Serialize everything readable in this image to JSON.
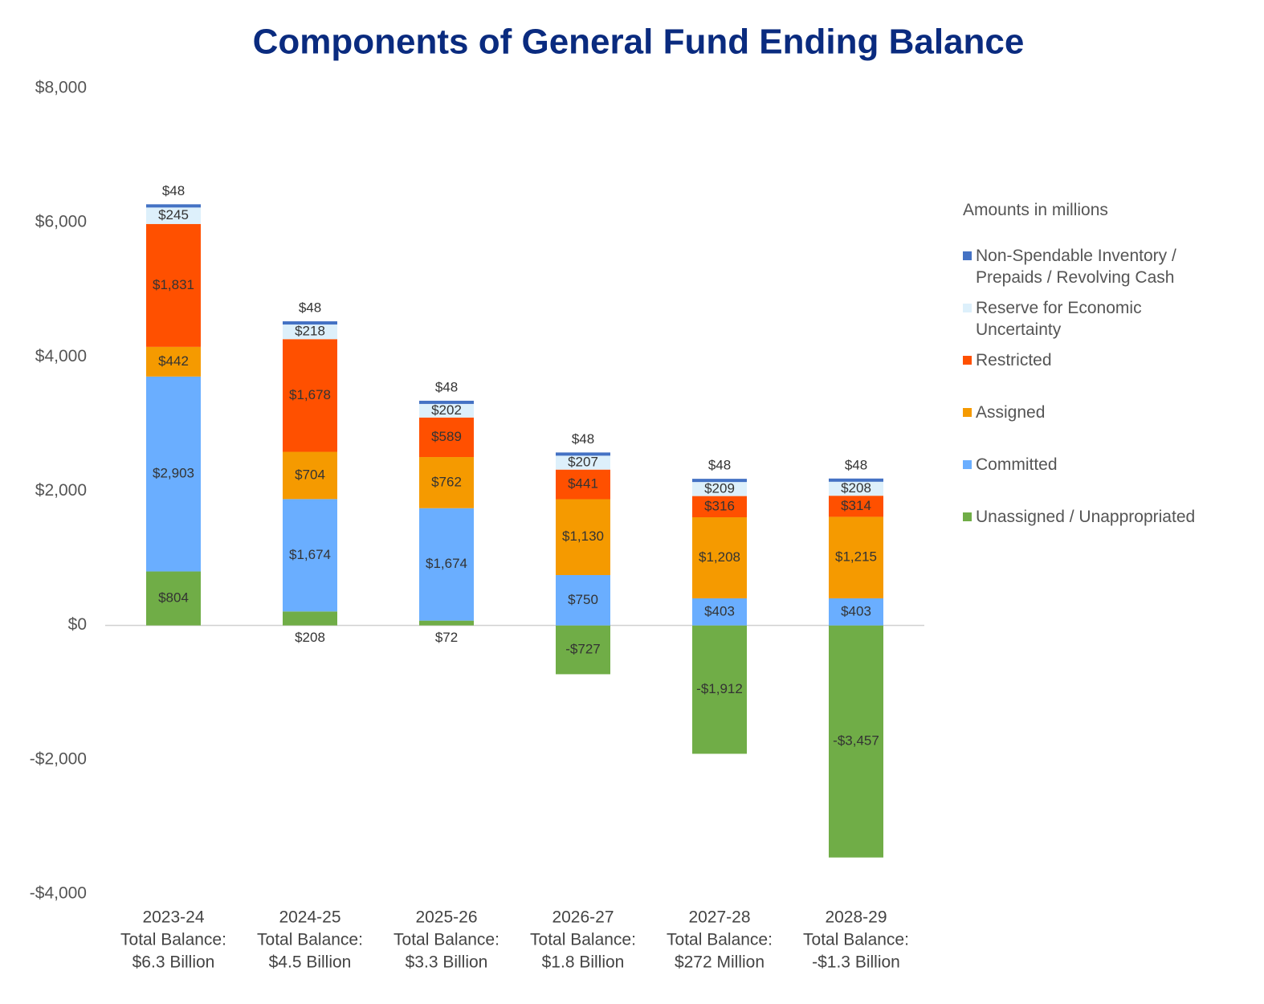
{
  "chart_data": {
    "type": "stacked_bar",
    "title": "Components of General Fund Ending Balance",
    "legend_title": "Amounts in millions",
    "legend": "right",
    "categories": [
      [
        "2023-24",
        "Total Balance:",
        "$6.3 Billion"
      ],
      [
        "2024-25",
        "Total Balance:",
        "$4.5 Billion"
      ],
      [
        "2025-26",
        "Total Balance:",
        "$3.3 Billion"
      ],
      [
        "2026-27",
        "Total Balance:",
        "$1.8 Billion"
      ],
      [
        "2027-28",
        "Total Balance:",
        "$272 Million"
      ],
      [
        "2028-29",
        "Total Balance:",
        "-$1.3 Billion"
      ]
    ],
    "ylim": [
      -4000,
      8000
    ],
    "yticks": [
      {
        "value": -4000,
        "label": "-$4,000"
      },
      {
        "value": -2000,
        "label": "-$2,000"
      },
      {
        "value": 0,
        "label": "$0"
      },
      {
        "value": 2000,
        "label": "$2,000"
      },
      {
        "value": 4000,
        "label": "$4,000"
      },
      {
        "value": 6000,
        "label": "$6,000"
      },
      {
        "value": 8000,
        "label": "$8,000"
      }
    ],
    "series": [
      {
        "name": "Unassigned / Unappropriated",
        "color": "#70ad47",
        "values": [
          804,
          208,
          72,
          -727,
          -1912,
          -3457
        ],
        "value_labels": [
          "$804",
          "$208",
          "$72",
          "-$727",
          "-$1,912",
          "-$3,457"
        ]
      },
      {
        "name": "Committed",
        "color": "#6aaeff",
        "values": [
          2903,
          1674,
          1674,
          750,
          403,
          403
        ],
        "value_labels": [
          "$2,903",
          "$1,674",
          "$1,674",
          "$750",
          "$403",
          "$403"
        ]
      },
      {
        "name": "Assigned",
        "color": "#f59a00",
        "values": [
          442,
          704,
          762,
          1130,
          1208,
          1215
        ],
        "value_labels": [
          "$442",
          "$704",
          "$762",
          "$1,130",
          "$1,208",
          "$1,215"
        ]
      },
      {
        "name": "Restricted",
        "color": "#ff5000",
        "values": [
          1831,
          1678,
          589,
          441,
          316,
          314
        ],
        "value_labels": [
          "$1,831",
          "$1,678",
          "$589",
          "$441",
          "$316",
          "$314"
        ]
      },
      {
        "name": "Reserve for Economic Uncertainty",
        "color": "#ddf0fb",
        "values": [
          245,
          218,
          202,
          207,
          209,
          208
        ],
        "value_labels": [
          "$245",
          "$218",
          "$202",
          "$207",
          "$209",
          "$208"
        ]
      },
      {
        "name": "Non-Spendable Inventory / Prepaids / Revolving Cash",
        "color": "#4472c4",
        "values": [
          48,
          48,
          48,
          48,
          48,
          48
        ],
        "value_labels": [
          "$48",
          "$48",
          "$48",
          "$48",
          "$48",
          "$48"
        ]
      }
    ]
  }
}
